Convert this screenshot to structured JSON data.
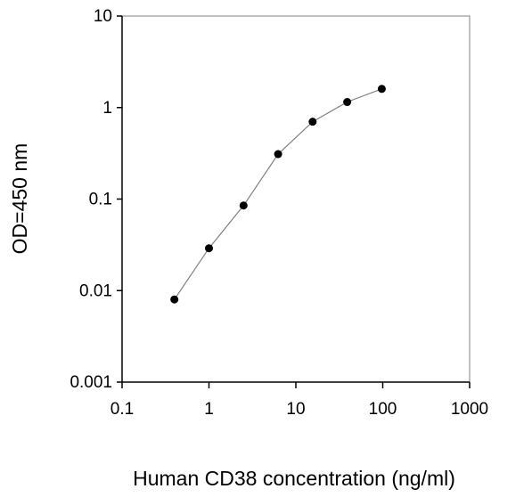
{
  "chart_data": {
    "type": "line",
    "title": "",
    "xlabel": "Human CD38 concentration (ng/ml)",
    "ylabel": "OD=450 nm",
    "x_scale": "log",
    "y_scale": "log",
    "xlim": [
      0.1,
      1000
    ],
    "ylim": [
      0.001,
      10
    ],
    "x_ticks": [
      {
        "value": 0.1,
        "label": "0.1"
      },
      {
        "value": 1,
        "label": "1"
      },
      {
        "value": 10,
        "label": "10"
      },
      {
        "value": 100,
        "label": "100"
      },
      {
        "value": 1000,
        "label": "1000"
      }
    ],
    "y_ticks": [
      {
        "value": 0.001,
        "label": "0.001"
      },
      {
        "value": 0.01,
        "label": "0.01"
      },
      {
        "value": 0.1,
        "label": "0.1"
      },
      {
        "value": 1,
        "label": "1"
      },
      {
        "value": 10,
        "label": "10"
      }
    ],
    "grid": false,
    "legend": "none",
    "series": [
      {
        "x": [
          0.4,
          1,
          2.5,
          6.25,
          15.6,
          39,
          97.5
        ],
        "y": [
          0.008,
          0.029,
          0.085,
          0.31,
          0.7,
          1.15,
          1.6
        ]
      }
    ],
    "colors": {
      "line": "#808080",
      "marker": "#000000",
      "axis": "#000000",
      "frame": "#808080"
    }
  }
}
